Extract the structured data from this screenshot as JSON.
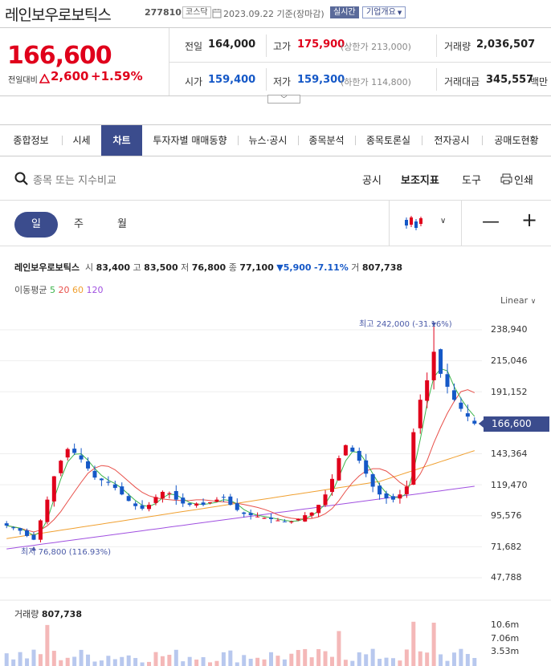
{
  "header": {
    "stock_name": "레인보우로보틱스",
    "stock_code": "277810",
    "market": "코스닥",
    "date": "2023.09.22",
    "date_suffix": "기준(장마감)",
    "realtime": "실시간",
    "company_info": "기업개요"
  },
  "quote": {
    "price": "166,600",
    "diff_label": "전일대비",
    "diff_value": "2,600",
    "diff_pct": "+1.59%",
    "prev_close_label": "전일",
    "prev_close": "164,000",
    "high_label": "고가",
    "high": "175,900",
    "upper_limit": "(상한가 213,000)",
    "volume_label": "거래량",
    "volume": "2,036,507",
    "open_label": "시가",
    "open": "159,400",
    "low_label": "저가",
    "low": "159,300",
    "lower_limit": "(하한가 114,800)",
    "amount_label": "거래대금",
    "amount": "345,557",
    "amount_unit": "백만"
  },
  "tabs": [
    "종합정보",
    "시세",
    "차트",
    "투자자별 매매동향",
    "뉴스·공시",
    "종목분석",
    "종목토론실",
    "전자공시",
    "공매도현황"
  ],
  "active_tab": "차트",
  "search": {
    "placeholder": "종목 또는 지수비교"
  },
  "tools": {
    "disclosure": "공시",
    "indicators": "보조지표",
    "tool": "도구",
    "print": "인쇄"
  },
  "period": {
    "day": "일",
    "week": "주",
    "month": "월",
    "active": "일"
  },
  "chart_info": {
    "name": "레인보우로보틱스",
    "open_label": "시",
    "open": "83,400",
    "high_label": "고",
    "high": "83,500",
    "low_label": "저",
    "low": "76,800",
    "close_label": "종",
    "close": "77,100",
    "change": "▼5,900",
    "change_pct": "-7.11%",
    "volume_label": "거",
    "volume": "807,738",
    "ma_label": "이동평균",
    "ma5": "5",
    "ma20": "20",
    "ma60": "60",
    "ma120": "120",
    "scale": "Linear"
  },
  "annotations": {
    "high": "최고 242,000 (-31.16%)",
    "low": "최저 76,800 (116.93%)"
  },
  "volume_info": {
    "label": "거래량",
    "value": "807,738"
  },
  "colors": {
    "up": "#e0001b",
    "down": "#1558c7",
    "ma5": "#3cb44b",
    "ma20": "#e8504a",
    "ma60": "#f0a030",
    "ma120": "#a050e0",
    "accent": "#3b4c8d"
  },
  "chart_data": {
    "type": "candlestick",
    "y_ticks": [
      238940,
      215046,
      191152,
      166600,
      143364,
      119470,
      95576,
      71682,
      47788
    ],
    "ylim": [
      35000,
      250000
    ],
    "volume_ticks": [
      "10.6m",
      "7.06m",
      "3.53m"
    ],
    "current_price": "166,600",
    "series_close_approx": [
      88000,
      86000,
      84000,
      80000,
      77100,
      92000,
      108000,
      126000,
      138000,
      147000,
      144000,
      139000,
      132000,
      125000,
      123000,
      121000,
      117000,
      112000,
      107000,
      103000,
      101000,
      104000,
      110000,
      114000,
      113000,
      108000,
      105000,
      104000,
      105000,
      104000,
      106000,
      108000,
      110000,
      104000,
      100000,
      97000,
      96000,
      95000,
      94000,
      93000,
      92000,
      91000,
      91000,
      93000,
      96000,
      98000,
      104000,
      112000,
      124000,
      140000,
      150000,
      145000,
      138000,
      128000,
      118000,
      112000,
      109000,
      108000,
      112000,
      118000,
      160000,
      185000,
      200000,
      222000,
      205000,
      195000,
      185000,
      178000,
      172000,
      166600
    ]
  }
}
